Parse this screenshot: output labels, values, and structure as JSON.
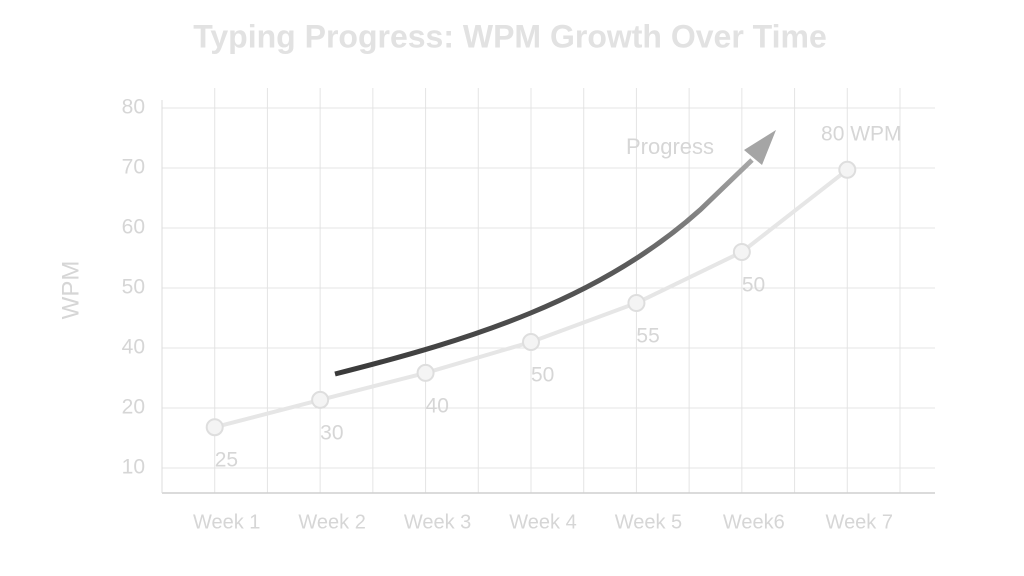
{
  "chart_data": {
    "type": "line",
    "title": "Typing Progress: WPM Growth Over Time",
    "y_label": "WPM",
    "categories": [
      "Week 1",
      "Week 2",
      "Week 3",
      "Week 4",
      "Week 5",
      "Week6",
      "Week 7"
    ],
    "series": [
      {
        "name": "WPM",
        "color": "#e6e6e6",
        "values": [
          16.8,
          22.7,
          31.7,
          41,
          47.5,
          56,
          69.7
        ]
      }
    ],
    "annotations": [
      "25",
      "30",
      "40",
      "50",
      "55",
      "50",
      "80 WPM"
    ],
    "arrow_label": "Progress",
    "ylim": [
      5.8,
      82
    ],
    "yticks": [
      10,
      20,
      40,
      50,
      60,
      70,
      80
    ],
    "grid": true
  }
}
